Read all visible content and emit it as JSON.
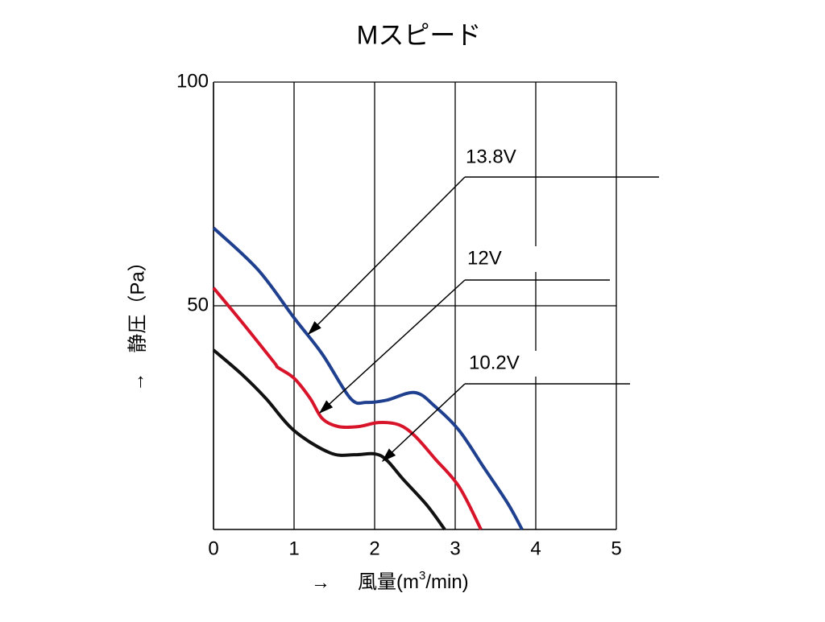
{
  "chart_data": {
    "type": "line",
    "title": "Mスピード",
    "x_label": {
      "arrow": "→",
      "text": "風量(m",
      "sup": "3",
      "tail": "/min)"
    },
    "y_label": "→　静圧（Pa）",
    "xlim": [
      0,
      5
    ],
    "ylim": [
      0,
      100
    ],
    "xticks": [
      0,
      1,
      2,
      3,
      4,
      5
    ],
    "yticks": [
      50,
      100
    ],
    "grid": true,
    "series": [
      {
        "name": "13.8V",
        "color": "#1f3f8f",
        "x": [
          0,
          0.55,
          1.0,
          1.35,
          1.7,
          1.9,
          2.15,
          2.5,
          2.75,
          3.05,
          3.35,
          3.65,
          3.83
        ],
        "values": [
          67.4,
          58.1,
          47.3,
          39.2,
          29.3,
          28.4,
          28.9,
          30.6,
          27.5,
          22.1,
          14.0,
          5.9,
          0
        ]
      },
      {
        "name": "12V",
        "color": "#d8142a",
        "x": [
          0,
          0.35,
          0.75,
          0.8,
          1.0,
          1.2,
          1.35,
          1.55,
          1.8,
          2.05,
          2.3,
          2.5,
          2.75,
          3.05,
          3.32
        ],
        "values": [
          54.0,
          46.4,
          37.4,
          36.2,
          33.8,
          29.3,
          24.8,
          23.0,
          23.0,
          23.9,
          23.4,
          20.9,
          15.8,
          9.5,
          0
        ]
      },
      {
        "name": "10.2V",
        "color": "#111111",
        "x": [
          0,
          0.35,
          0.65,
          1.0,
          1.45,
          1.75,
          2.0,
          2.15,
          2.35,
          2.65,
          2.87
        ],
        "values": [
          40.1,
          34.7,
          29.3,
          22.1,
          17.1,
          16.7,
          16.9,
          15.5,
          11.3,
          5.4,
          0
        ]
      }
    ]
  }
}
